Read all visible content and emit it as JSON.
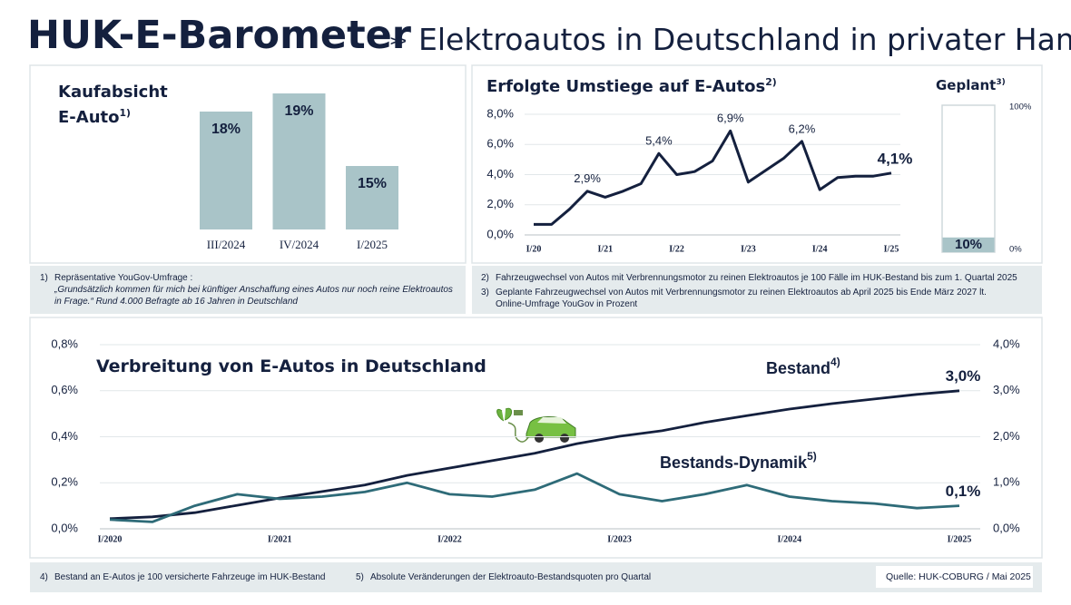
{
  "header": {
    "title": "HUK-E-Barometer",
    "separator": ">>",
    "subtitle": "Elektroautos in Deutschland in privater Hand"
  },
  "chart_data": [
    {
      "type": "bar",
      "title": "Kaufabsicht E-Auto",
      "title_note": "1)",
      "categories": [
        "III/2024",
        "IV/2024",
        "I/2025"
      ],
      "values": [
        18,
        19,
        15
      ],
      "value_labels": [
        "18%",
        "19%",
        "15%"
      ],
      "color": "#a9c4c8",
      "ylim": [
        11.5,
        19.5
      ]
    },
    {
      "type": "line",
      "title": "Erfolgte Umstiege auf E-Autos",
      "title_note": "2)",
      "categories": [
        "I/20",
        null,
        null,
        null,
        "I/21",
        null,
        null,
        null,
        "I/22",
        null,
        null,
        null,
        "I/23",
        null,
        null,
        null,
        "I/24",
        null,
        null,
        null,
        "I/25"
      ],
      "values": [
        0.7,
        0.7,
        1.7,
        2.9,
        2.5,
        2.9,
        3.4,
        5.4,
        4.0,
        4.2,
        4.9,
        6.9,
        3.5,
        4.3,
        5.1,
        6.2,
        3.0,
        3.8,
        3.9,
        3.9,
        4.1
      ],
      "value_labels": [
        null,
        null,
        null,
        "2,9%",
        null,
        null,
        null,
        "5,4%",
        null,
        null,
        null,
        "6,9%",
        null,
        null,
        null,
        "6,2%",
        null,
        null,
        null,
        null,
        "4,1%"
      ],
      "color": "#14203e",
      "ylim": [
        0,
        8
      ],
      "yticks": [
        {
          "value": 0,
          "label": "0,0%"
        },
        {
          "value": 2,
          "label": "2,0%"
        },
        {
          "value": 4,
          "label": "4,0%"
        },
        {
          "value": 6,
          "label": "6,0%"
        },
        {
          "value": 8,
          "label": "8,0%"
        }
      ],
      "grid": true
    },
    {
      "type": "bar",
      "title": "Geplant",
      "title_note": "3)",
      "categories": [
        null
      ],
      "values": [
        10
      ],
      "value_labels": [
        "10%"
      ],
      "color": "#a9c4c8",
      "ylim": [
        0,
        100
      ],
      "yticks": [
        {
          "value": 0,
          "label": "0%"
        },
        {
          "value": 100,
          "label": "100%"
        }
      ]
    },
    {
      "type": "line",
      "title": "Verbreitung von E-Autos in Deutschland",
      "categories": [
        "I/2020",
        null,
        null,
        null,
        "I/2021",
        null,
        null,
        null,
        "I/2022",
        null,
        null,
        null,
        "I/2023",
        null,
        null,
        null,
        "I/2024",
        null,
        null,
        null,
        "I/2025"
      ],
      "series": [
        {
          "name": "Bestand",
          "name_note": "4)",
          "color": "#14203e",
          "axis": "y2",
          "values": [
            0.22,
            0.26,
            0.35,
            0.51,
            0.67,
            0.81,
            0.95,
            1.16,
            1.32,
            1.48,
            1.64,
            1.85,
            2.01,
            2.13,
            2.31,
            2.46,
            2.6,
            2.72,
            2.82,
            2.92,
            3.0
          ],
          "value_labels": [
            null,
            null,
            null,
            null,
            null,
            null,
            null,
            null,
            null,
            null,
            null,
            null,
            null,
            null,
            null,
            null,
            null,
            null,
            null,
            null,
            "3,0%"
          ]
        },
        {
          "name": "Bestands-Dynamik",
          "name_note": "5)",
          "color": "#2e6b78",
          "values": [
            0.04,
            0.03,
            0.1,
            0.15,
            0.13,
            0.14,
            0.16,
            0.2,
            0.15,
            0.14,
            0.17,
            0.24,
            0.15,
            0.12,
            0.15,
            0.19,
            0.14,
            0.12,
            0.11,
            0.09,
            0.1
          ],
          "value_labels": [
            null,
            null,
            null,
            null,
            null,
            null,
            null,
            null,
            null,
            null,
            null,
            null,
            null,
            null,
            null,
            null,
            null,
            null,
            null,
            null,
            "0,1%"
          ]
        }
      ],
      "ylim": [
        0,
        0.8
      ],
      "yticks": [
        {
          "value": 0,
          "label": "0,0%"
        },
        {
          "value": 0.2,
          "label": "0,2%"
        },
        {
          "value": 0.4,
          "label": "0,4%"
        },
        {
          "value": 0.6,
          "label": "0,6%"
        },
        {
          "value": 0.8,
          "label": "0,8%"
        }
      ],
      "y2lim": [
        0,
        4
      ],
      "y2ticks": [
        {
          "value": 0,
          "label": "0,0%"
        },
        {
          "value": 1,
          "label": "1,0%"
        },
        {
          "value": 2,
          "label": "2,0%"
        },
        {
          "value": 3,
          "label": "3,0%"
        },
        {
          "value": 4,
          "label": "4,0%"
        }
      ],
      "grid": true
    }
  ],
  "footnotes": [
    {
      "mark": "1)",
      "text": "Repräsentative YouGov-Umfrage :",
      "quote": "„Grundsätzlich kommen für mich bei künftiger Anschaffung eines Autos nur noch reine Elektroautos in Frage.“ Rund 4.000 Befragte ab 16 Jahren in Deutschland"
    },
    {
      "mark": "2)",
      "text": "Fahrzeugwechsel von Autos mit Verbrennungsmotor zu reinen Elektroautos je 100 Fälle im HUK-Bestand bis zum 1. Quartal 2025"
    },
    {
      "mark": "3)",
      "text": "Geplante Fahrzeugwechsel von Autos mit Verbrennungsmotor zu reinen Elektroautos ab April 2025 bis Ende März 2027 lt. Online-Umfrage YouGov in Prozent"
    },
    {
      "mark": "4)",
      "text": "Bestand an E-Autos je 100 versicherte Fahrzeuge im HUK-Bestand"
    },
    {
      "mark": "5)",
      "text": "Absolute Veränderungen der Elektroauto-Bestandsquoten pro Quartal"
    }
  ],
  "source": "Quelle: HUK-COBURG / Mai 2025"
}
